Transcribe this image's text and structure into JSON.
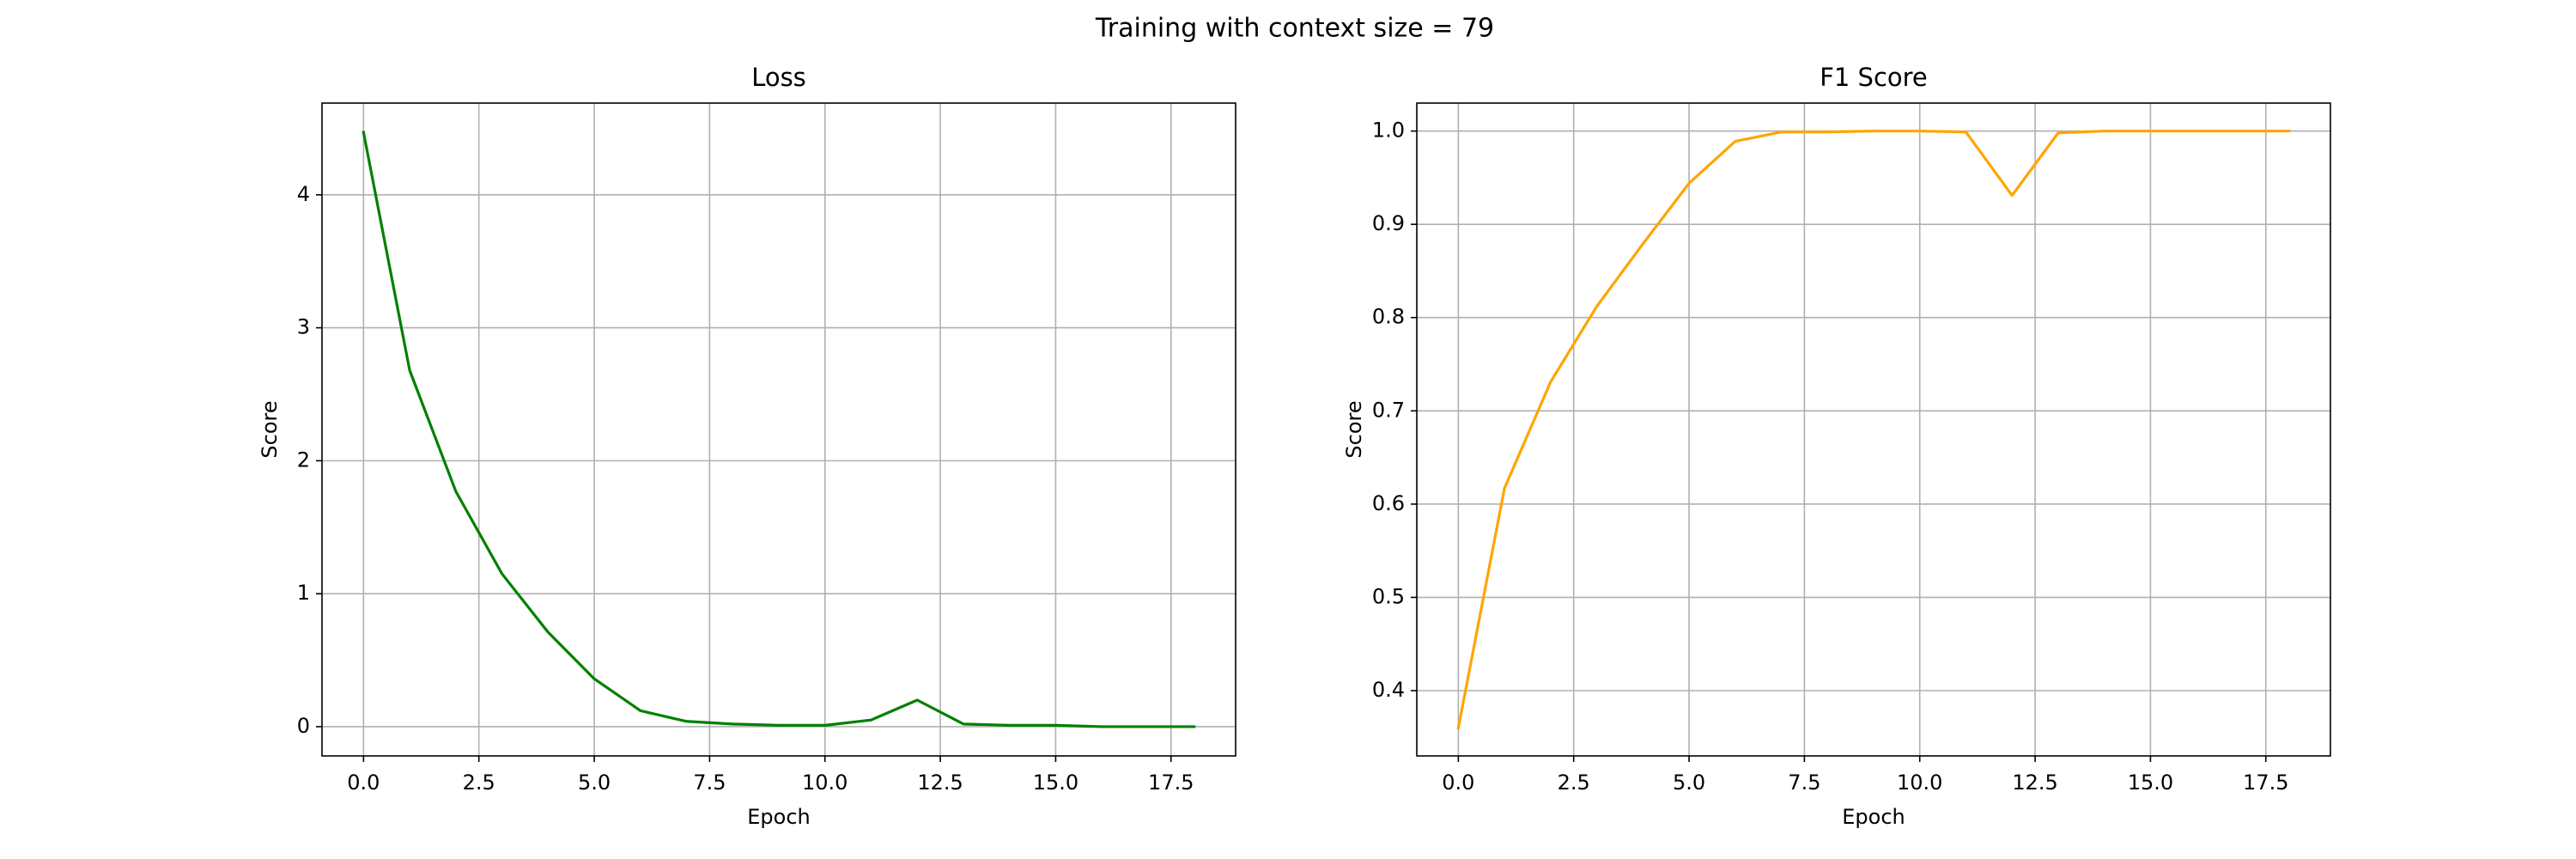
{
  "suptitle": "Training with context size = 79",
  "chart_data": [
    {
      "type": "line",
      "title": "Loss",
      "xlabel": "Epoch",
      "ylabel": "Score",
      "xlim": [
        -0.9,
        18.9
      ],
      "ylim": [
        -0.22,
        4.69
      ],
      "xticks": [
        0.0,
        2.5,
        5.0,
        7.5,
        10.0,
        12.5,
        15.0,
        17.5
      ],
      "xtick_labels": [
        "0.0",
        "2.5",
        "5.0",
        "7.5",
        "10.0",
        "12.5",
        "15.0",
        "17.5"
      ],
      "yticks": [
        0,
        1,
        2,
        3,
        4
      ],
      "ytick_labels": [
        "0",
        "1",
        "2",
        "3",
        "4"
      ],
      "grid": true,
      "series": [
        {
          "color": "#008000",
          "x": [
            0,
            1,
            2,
            3,
            4,
            5,
            6,
            7,
            8,
            9,
            10,
            11,
            12,
            13,
            14,
            15,
            16,
            17,
            18
          ],
          "values": [
            4.47,
            2.68,
            1.77,
            1.15,
            0.71,
            0.36,
            0.12,
            0.04,
            0.02,
            0.01,
            0.01,
            0.05,
            0.2,
            0.02,
            0.01,
            0.01,
            0.0,
            0.0,
            0.0
          ]
        }
      ]
    },
    {
      "type": "line",
      "title": "F1 Score",
      "xlabel": "Epoch",
      "ylabel": "Score",
      "xlim": [
        -0.9,
        18.9
      ],
      "ylim": [
        0.33,
        1.03
      ],
      "xticks": [
        0.0,
        2.5,
        5.0,
        7.5,
        10.0,
        12.5,
        15.0,
        17.5
      ],
      "xtick_labels": [
        "0.0",
        "2.5",
        "5.0",
        "7.5",
        "10.0",
        "12.5",
        "15.0",
        "17.5"
      ],
      "yticks": [
        0.4,
        0.5,
        0.6,
        0.7,
        0.8,
        0.9,
        1.0
      ],
      "ytick_labels": [
        "0.4",
        "0.5",
        "0.6",
        "0.7",
        "0.8",
        "0.9",
        "1.0"
      ],
      "grid": true,
      "series": [
        {
          "color": "#FFA500",
          "x": [
            0,
            1,
            2,
            3,
            4,
            5,
            6,
            7,
            8,
            9,
            10,
            11,
            12,
            13,
            14,
            15,
            16,
            17,
            18
          ],
          "values": [
            0.36,
            0.617,
            0.731,
            0.812,
            0.879,
            0.944,
            0.989,
            0.999,
            0.999,
            1.0,
            1.0,
            0.999,
            0.931,
            0.998,
            1.0,
            1.0,
            1.0,
            1.0,
            1.0
          ]
        }
      ]
    }
  ]
}
